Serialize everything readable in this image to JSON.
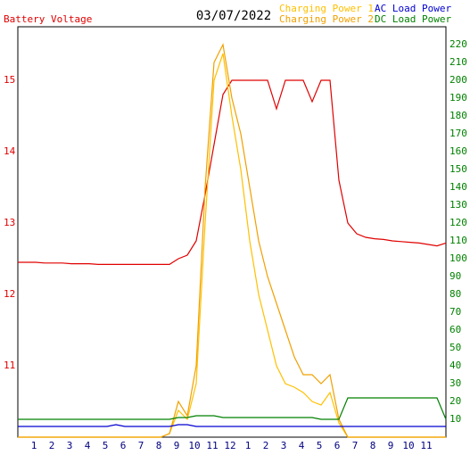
{
  "chart_data": {
    "type": "line",
    "title": "03/07/2022",
    "x": [
      0,
      0.5,
      1,
      1.5,
      2,
      2.5,
      3,
      3.5,
      4,
      4.5,
      5,
      5.5,
      6,
      6.5,
      7,
      7.5,
      8,
      8.5,
      9,
      9.5,
      10,
      10.5,
      11,
      11.5,
      12,
      12.5,
      13,
      13.5,
      14,
      14.5,
      15,
      15.5,
      16,
      16.5,
      17,
      17.5,
      18,
      18.5,
      19,
      19.5,
      20,
      20.5,
      21,
      21.5,
      22,
      22.5,
      23,
      23.5,
      24
    ],
    "xlim": [
      0,
      24
    ],
    "xticks": [
      {
        "value": 1,
        "label": "1"
      },
      {
        "value": 2,
        "label": "2"
      },
      {
        "value": 3,
        "label": "3"
      },
      {
        "value": 4,
        "label": "4"
      },
      {
        "value": 5,
        "label": "5"
      },
      {
        "value": 6,
        "label": "6"
      },
      {
        "value": 7,
        "label": "7"
      },
      {
        "value": 8,
        "label": "8"
      },
      {
        "value": 9,
        "label": "9"
      },
      {
        "value": 10,
        "label": "10"
      },
      {
        "value": 11,
        "label": "11"
      },
      {
        "value": 12,
        "label": "12"
      },
      {
        "value": 13,
        "label": "1"
      },
      {
        "value": 14,
        "label": "2"
      },
      {
        "value": 15,
        "label": "3"
      },
      {
        "value": 16,
        "label": "4"
      },
      {
        "value": 17,
        "label": "5"
      },
      {
        "value": 18,
        "label": "6"
      },
      {
        "value": 19,
        "label": "7"
      },
      {
        "value": 20,
        "label": "8"
      },
      {
        "value": 21,
        "label": "9"
      },
      {
        "value": 22,
        "label": "10"
      },
      {
        "value": 23,
        "label": "11"
      }
    ],
    "ylim": [
      10,
      15.75
    ],
    "yticks": [
      11,
      12,
      13,
      14,
      15
    ],
    "y2lim": [
      0,
      230
    ],
    "y2ticks": [
      10,
      20,
      30,
      40,
      50,
      60,
      70,
      80,
      90,
      100,
      110,
      120,
      130,
      140,
      150,
      160,
      170,
      180,
      190,
      200,
      210,
      220
    ],
    "grid": true,
    "series": [
      {
        "name": "Battery Voltage",
        "color": "#e00000",
        "axis": "y",
        "values": [
          12.45,
          12.45,
          12.45,
          12.44,
          12.44,
          12.44,
          12.43,
          12.43,
          12.43,
          12.42,
          12.42,
          12.42,
          12.42,
          12.42,
          12.42,
          12.42,
          12.42,
          12.42,
          12.5,
          12.55,
          12.75,
          13.4,
          14.1,
          14.8,
          15,
          15,
          15,
          15,
          15,
          14.6,
          15,
          15,
          15,
          14.7,
          15,
          15,
          13.6,
          13.0,
          12.85,
          12.8,
          12.78,
          12.77,
          12.75,
          12.74,
          12.73,
          12.72,
          12.7,
          12.68,
          12.72
        ]
      },
      {
        "name": "Charging Power 1",
        "color": "#ffc000",
        "axis": "y2",
        "values": [
          0,
          0,
          0,
          0,
          0,
          0,
          0,
          0,
          0,
          0,
          0,
          0,
          0,
          0,
          0,
          0,
          0,
          2,
          15,
          10,
          30,
          120,
          200,
          215,
          180,
          150,
          110,
          80,
          60,
          40,
          30,
          28,
          25,
          20,
          18,
          25,
          8,
          0,
          0,
          0,
          0,
          0,
          0,
          0,
          0,
          0,
          0,
          0,
          0
        ]
      },
      {
        "name": "Charging Power 2",
        "color": "#f0a000",
        "axis": "y2",
        "values": [
          0,
          0,
          0,
          0,
          0,
          0,
          0,
          0,
          0,
          0,
          0,
          0,
          0,
          0,
          0,
          0,
          0,
          2,
          20,
          12,
          40,
          140,
          210,
          220,
          190,
          170,
          140,
          110,
          90,
          75,
          60,
          45,
          35,
          35,
          30,
          35,
          10,
          0,
          0,
          0,
          0,
          0,
          0,
          0,
          0,
          0,
          0,
          0,
          0
        ]
      },
      {
        "name": "AC Load Power",
        "color": "#0000d0",
        "axis": "y2",
        "values": [
          6,
          6,
          6,
          6,
          6,
          6,
          6,
          6,
          6,
          6,
          6,
          7,
          6,
          6,
          6,
          6,
          6,
          6,
          7,
          7,
          6,
          6,
          6,
          6,
          6,
          6,
          6,
          6,
          6,
          6,
          6,
          6,
          6,
          6,
          6,
          6,
          6,
          6,
          6,
          6,
          6,
          6,
          6,
          6,
          6,
          6,
          6,
          6,
          6
        ]
      },
      {
        "name": "DC Load Power",
        "color": "#008000",
        "axis": "y2",
        "values": [
          10,
          10,
          10,
          10,
          10,
          10,
          10,
          10,
          10,
          10,
          10,
          10,
          10,
          10,
          10,
          10,
          10,
          10,
          11,
          11,
          12,
          12,
          12,
          11,
          11,
          11,
          11,
          11,
          11,
          11,
          11,
          11,
          11,
          11,
          10,
          10,
          10,
          22,
          22,
          22,
          22,
          22,
          22,
          22,
          22,
          22,
          22,
          22,
          10
        ]
      }
    ]
  }
}
